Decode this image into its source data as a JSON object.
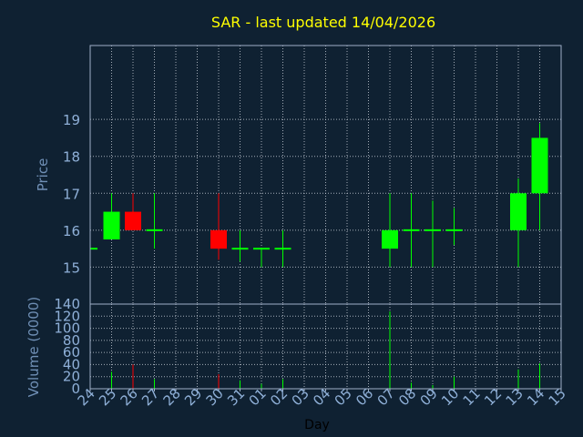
{
  "colors": {
    "background": "#0f2132",
    "axis": "#9fb0c8",
    "grid": "#c8d0d8",
    "title": "#ffff00",
    "label": "#6f8fb5",
    "tick_label": "#8fb0d8",
    "xlabel": "#000000",
    "up": "#00ff00",
    "down": "#ff0000"
  },
  "chart_data": {
    "type": "candlestick",
    "title": "SAR - last updated 14/04/2026",
    "xlabel": "Day",
    "x_ticks": [
      "24",
      "25",
      "26",
      "27",
      "28",
      "29",
      "30",
      "31",
      "01",
      "02",
      "03",
      "04",
      "05",
      "06",
      "07",
      "08",
      "09",
      "10",
      "11",
      "12",
      "13",
      "14",
      "15"
    ],
    "price_panel": {
      "ylabel": "Price",
      "ylim": [
        14,
        21
      ],
      "yticks": [
        15,
        16,
        17,
        18,
        19
      ],
      "candles": [
        {
          "day": "24",
          "open": 15.5,
          "close": 15.5,
          "high": 15.5,
          "low": 15.5
        },
        {
          "day": "25",
          "open": 15.75,
          "close": 16.5,
          "high": 17.0,
          "low": 15.75
        },
        {
          "day": "26",
          "open": 16.5,
          "close": 16.0,
          "high": 17.0,
          "low": 16.0
        },
        {
          "day": "27",
          "open": 16.0,
          "close": 16.0,
          "high": 17.0,
          "low": 15.5
        },
        {
          "day": "30",
          "open": 16.0,
          "close": 15.5,
          "high": 17.0,
          "low": 15.2
        },
        {
          "day": "31",
          "open": 15.5,
          "close": 15.5,
          "high": 16.0,
          "low": 15.15
        },
        {
          "day": "01",
          "open": 15.5,
          "close": 15.5,
          "high": 15.5,
          "low": 15.0
        },
        {
          "day": "02",
          "open": 15.5,
          "close": 15.5,
          "high": 16.0,
          "low": 15.0
        },
        {
          "day": "07",
          "open": 15.5,
          "close": 16.0,
          "high": 17.0,
          "low": 15.0
        },
        {
          "day": "08",
          "open": 16.0,
          "close": 16.0,
          "high": 17.0,
          "low": 15.0
        },
        {
          "day": "09",
          "open": 16.0,
          "close": 16.0,
          "high": 16.8,
          "low": 15.0
        },
        {
          "day": "10",
          "open": 16.0,
          "close": 16.0,
          "high": 16.6,
          "low": 15.6
        },
        {
          "day": "13",
          "open": 16.0,
          "close": 17.0,
          "high": 17.4,
          "low": 15.0
        },
        {
          "day": "14",
          "open": 17.0,
          "close": 18.5,
          "high": 18.9,
          "low": 16.0
        }
      ]
    },
    "volume_panel": {
      "ylabel": "Volume (0000)",
      "ylim": [
        0,
        140
      ],
      "yticks": [
        0,
        20,
        40,
        60,
        80,
        100,
        120,
        140
      ],
      "bars": [
        {
          "day": "25",
          "value": 28,
          "direction": "up"
        },
        {
          "day": "26",
          "value": 40,
          "direction": "down"
        },
        {
          "day": "27",
          "value": 16,
          "direction": "up"
        },
        {
          "day": "30",
          "value": 24,
          "direction": "down"
        },
        {
          "day": "31",
          "value": 14,
          "direction": "up"
        },
        {
          "day": "01",
          "value": 8,
          "direction": "up"
        },
        {
          "day": "02",
          "value": 16,
          "direction": "up"
        },
        {
          "day": "07",
          "value": 128,
          "direction": "up"
        },
        {
          "day": "08",
          "value": 10,
          "direction": "up"
        },
        {
          "day": "09",
          "value": 6,
          "direction": "up"
        },
        {
          "day": "10",
          "value": 20,
          "direction": "up"
        },
        {
          "day": "13",
          "value": 32,
          "direction": "up"
        },
        {
          "day": "14",
          "value": 42,
          "direction": "up"
        }
      ]
    },
    "grid": true
  }
}
